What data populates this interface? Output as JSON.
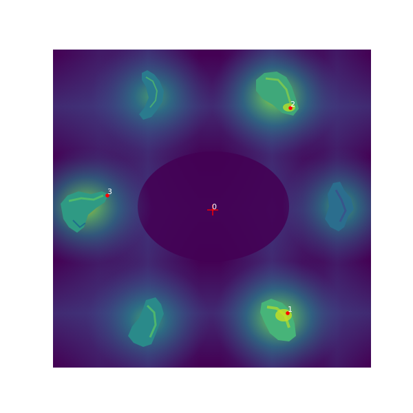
{
  "figure": {
    "type": "heatmap-canvas",
    "colormap": "viridis",
    "colors": {
      "background": "#440154",
      "low": "#46327e",
      "mid": "#277f8e",
      "high": "#4ac16d",
      "peak": "#c8e020",
      "marker": "#ff0000",
      "label": "#ffffff"
    }
  },
  "keypoints": [
    {
      "id": "0",
      "label": "0",
      "kind": "cross"
    },
    {
      "id": "1",
      "label": "1",
      "kind": "dot"
    },
    {
      "id": "2",
      "label": "2",
      "kind": "dot"
    },
    {
      "id": "3",
      "label": "3",
      "kind": "dot"
    }
  ],
  "objects": [
    {
      "name": "top-left-object-silhouette"
    },
    {
      "name": "top-right-object-silhouette"
    },
    {
      "name": "left-object-silhouette"
    },
    {
      "name": "right-object-silhouette"
    },
    {
      "name": "bottom-left-object-silhouette"
    },
    {
      "name": "bottom-right-object-silhouette"
    }
  ]
}
